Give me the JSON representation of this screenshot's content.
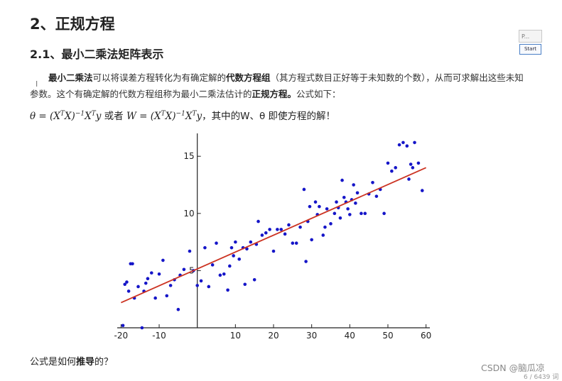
{
  "heading_main": "2、正规方程",
  "heading_sub": "2.1、最小二乘法矩阵表示",
  "paragraph": {
    "t1": "最小二乘法",
    "t2": "可以将误差方程转化为有确定解的",
    "t3": "代数方程组",
    "t4": "（其方程式数目正好等于未知数的个数），从而可求解出这些未知参数。这个有确定解的代数方程组称为最小二乘法估计的",
    "t5": "正规方程。",
    "t6": "公式如下："
  },
  "formula": {
    "lhs1": "θ = (X",
    "sup1": "T",
    "mid1": "X)",
    "sup2": "−1",
    "mid2": "X",
    "sup3": "T",
    "end1": "y",
    "conj": " 或者 ",
    "lhs2": "W = (X",
    "sup4": "T",
    "mid3": "X)",
    "sup5": "−1",
    "mid4": "X",
    "sup6": "T",
    "end2": "y",
    "tail": "，其中的W、θ 即使方程的解！"
  },
  "chart_data": {
    "type": "scatter",
    "xlim": [
      -21,
      61
    ],
    "ylim": [
      0,
      17
    ],
    "xticks": [
      -20,
      -10,
      10,
      20,
      30,
      40,
      50,
      60
    ],
    "yticks": [
      5,
      10,
      15
    ],
    "point_color": "#1515c8",
    "line_color": "#cc3322",
    "fit_line": {
      "x": [
        -20,
        60
      ],
      "y": [
        2.2,
        14.0
      ]
    },
    "points": [
      [
        -19.5,
        0.2
      ],
      [
        -19,
        3.8
      ],
      [
        -18.5,
        4.0
      ],
      [
        -18,
        3.2
      ],
      [
        -17.5,
        5.6
      ],
      [
        -17,
        5.6
      ],
      [
        -16.5,
        2.6
      ],
      [
        -15.5,
        3.6
      ],
      [
        -14.5,
        0.0
      ],
      [
        -14,
        3.2
      ],
      [
        -13.5,
        3.9
      ],
      [
        -13,
        4.3
      ],
      [
        -12,
        4.8
      ],
      [
        -11,
        2.6
      ],
      [
        -10,
        4.7
      ],
      [
        -9,
        5.9
      ],
      [
        -8,
        2.8
      ],
      [
        -7,
        3.7
      ],
      [
        -6,
        4.2
      ],
      [
        -5,
        1.6
      ],
      [
        -4.5,
        4.6
      ],
      [
        -3.5,
        5.1
      ],
      [
        -2,
        6.7
      ],
      [
        -1,
        5.0
      ],
      [
        0,
        3.7
      ],
      [
        1,
        4.1
      ],
      [
        2,
        7.0
      ],
      [
        3,
        3.6
      ],
      [
        4,
        5.5
      ],
      [
        5,
        7.4
      ],
      [
        6,
        4.6
      ],
      [
        7,
        4.7
      ],
      [
        8,
        3.3
      ],
      [
        8.5,
        5.4
      ],
      [
        9,
        7.0
      ],
      [
        9.5,
        6.3
      ],
      [
        10,
        7.5
      ],
      [
        11,
        6.0
      ],
      [
        12,
        7.0
      ],
      [
        12.5,
        3.8
      ],
      [
        13,
        6.9
      ],
      [
        14,
        7.5
      ],
      [
        15,
        4.2
      ],
      [
        15.5,
        7.3
      ],
      [
        16,
        9.3
      ],
      [
        17,
        8.1
      ],
      [
        18,
        8.3
      ],
      [
        19,
        8.6
      ],
      [
        20,
        6.7
      ],
      [
        21,
        8.6
      ],
      [
        22,
        8.6
      ],
      [
        23,
        8.2
      ],
      [
        24,
        9.0
      ],
      [
        25,
        7.4
      ],
      [
        26,
        7.4
      ],
      [
        27,
        8.8
      ],
      [
        28,
        12.1
      ],
      [
        28.5,
        5.8
      ],
      [
        29,
        9.3
      ],
      [
        29.5,
        10.6
      ],
      [
        30,
        7.7
      ],
      [
        31,
        11.0
      ],
      [
        31.5,
        9.9
      ],
      [
        32,
        10.6
      ],
      [
        33,
        8.1
      ],
      [
        33.5,
        8.8
      ],
      [
        34,
        10.4
      ],
      [
        35,
        9.1
      ],
      [
        36,
        10.0
      ],
      [
        36.5,
        11.0
      ],
      [
        37,
        10.5
      ],
      [
        37.5,
        9.6
      ],
      [
        38,
        12.9
      ],
      [
        38.5,
        11.4
      ],
      [
        39,
        11.0
      ],
      [
        39.5,
        10.4
      ],
      [
        40,
        9.9
      ],
      [
        40.5,
        11.2
      ],
      [
        41,
        12.5
      ],
      [
        41.5,
        10.9
      ],
      [
        42,
        11.8
      ],
      [
        43,
        10.0
      ],
      [
        44,
        10.0
      ],
      [
        45,
        11.7
      ],
      [
        46,
        12.7
      ],
      [
        47,
        11.5
      ],
      [
        48,
        12.1
      ],
      [
        49,
        10.0
      ],
      [
        50,
        14.4
      ],
      [
        51,
        13.7
      ],
      [
        53,
        16.0
      ],
      [
        54,
        16.2
      ],
      [
        55,
        15.9
      ],
      [
        56,
        14.3
      ],
      [
        57,
        16.2
      ],
      [
        58,
        14.4
      ],
      [
        59,
        12.0
      ],
      [
        55.5,
        13.0
      ],
      [
        52,
        14.0
      ],
      [
        56.5,
        14.0
      ]
    ]
  },
  "question": {
    "q1": "公式是如何",
    "q2": "推导",
    "q3": "的？"
  },
  "footer_credit": "CSDN @脑瓜凉",
  "footer_count": "6 / 6439 词",
  "widget_label": "P...",
  "start_label": "Start"
}
